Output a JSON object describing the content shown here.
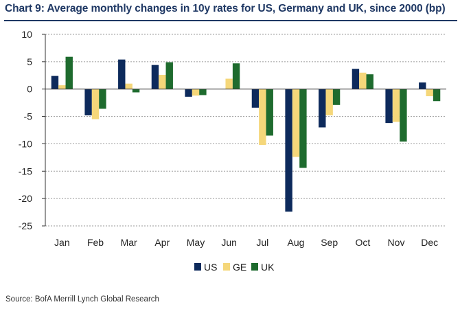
{
  "title": "Chart 9: Average monthly changes in 10y rates  for US, Germany and UK, since 2000 (bp)",
  "source": "Source:  BofA Merrill Lynch Global Research",
  "chart_data": {
    "type": "bar",
    "categories": [
      "Jan",
      "Feb",
      "Mar",
      "Apr",
      "May",
      "Jun",
      "Jul",
      "Aug",
      "Sep",
      "Oct",
      "Nov",
      "Dec"
    ],
    "series": [
      {
        "name": "US",
        "color": "#0d2a5c",
        "values": [
          2.4,
          -4.8,
          5.4,
          4.4,
          -1.4,
          0.0,
          -3.4,
          -22.4,
          -7.0,
          3.7,
          -6.2,
          1.2
        ]
      },
      {
        "name": "GE",
        "color": "#f5d77a",
        "values": [
          0.7,
          -5.5,
          1.0,
          2.6,
          -1.2,
          1.9,
          -10.2,
          -12.4,
          -4.8,
          3.0,
          -6.0,
          -1.3
        ]
      },
      {
        "name": "UK",
        "color": "#1e6b2e",
        "values": [
          5.9,
          -3.6,
          -0.6,
          4.9,
          -1.1,
          4.7,
          -8.5,
          -14.4,
          -2.9,
          2.7,
          -9.6,
          -2.2
        ]
      }
    ],
    "yticks": [
      10,
      5,
      0,
      -5,
      -10,
      -15,
      -20,
      -25
    ],
    "ylim": [
      -25,
      10
    ],
    "grid": "horizontal-dashed",
    "legend": "bottom-center"
  }
}
